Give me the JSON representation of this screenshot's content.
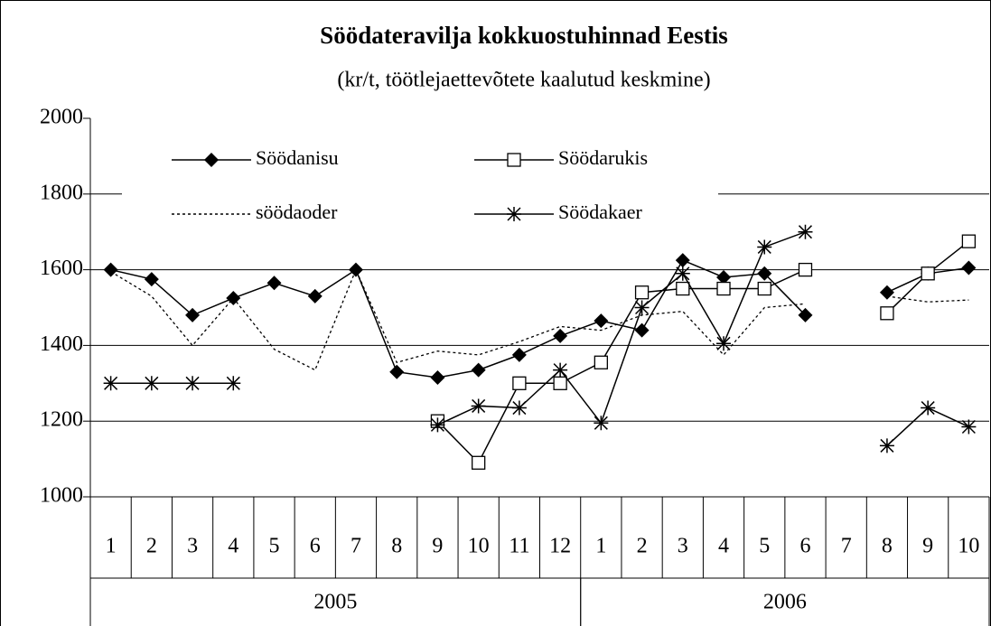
{
  "chart_data": {
    "type": "line",
    "title": "Söödateravilja kokkuostuhinnad Eestis",
    "subtitle": "(kr/t, töötlejaettevõtete kaalutud keskmine)",
    "categories": [
      "1",
      "2",
      "3",
      "4",
      "5",
      "6",
      "7",
      "8",
      "9",
      "10",
      "11",
      "12",
      "1",
      "2",
      "3",
      "4",
      "5",
      "6",
      "7",
      "8",
      "9",
      "10"
    ],
    "groups": [
      {
        "label": "2005",
        "span": 12
      },
      {
        "label": "2006",
        "span": 10
      }
    ],
    "ylim": [
      1000,
      2000
    ],
    "yticks": [
      1000,
      1200,
      1400,
      1600,
      1800,
      2000
    ],
    "grid": true,
    "series": [
      {
        "name": "Söödanisu",
        "color": "#000000",
        "marker": "diamond",
        "dashed": false,
        "values": [
          1600,
          1575,
          1480,
          1525,
          1565,
          1530,
          1600,
          1330,
          1315,
          1335,
          1375,
          1425,
          1465,
          1440,
          1625,
          1580,
          1590,
          1480,
          null,
          1540,
          1590,
          1605
        ]
      },
      {
        "name": "Söödarukis",
        "color": "#000000",
        "marker": "square",
        "dashed": false,
        "values": [
          null,
          null,
          null,
          null,
          null,
          null,
          null,
          null,
          1200,
          1090,
          1300,
          1300,
          1355,
          1540,
          1550,
          1550,
          1550,
          1600,
          null,
          1485,
          1590,
          1675
        ]
      },
      {
        "name": "söödaoder",
        "color": "#000000",
        "marker": "none",
        "dashed": true,
        "values": [
          1595,
          1530,
          1400,
          1525,
          1390,
          1335,
          1600,
          1355,
          1385,
          1375,
          1410,
          1450,
          1440,
          1480,
          1490,
          1375,
          1500,
          1510,
          null,
          1530,
          1515,
          1520
        ]
      },
      {
        "name": "Söödakaer",
        "color": "#000000",
        "marker": "star",
        "dashed": false,
        "values": [
          1300,
          1300,
          1300,
          1300,
          null,
          null,
          null,
          null,
          1190,
          1240,
          1235,
          1335,
          1195,
          1500,
          1590,
          1405,
          1660,
          1700,
          null,
          1135,
          1235,
          1185
        ]
      }
    ]
  }
}
